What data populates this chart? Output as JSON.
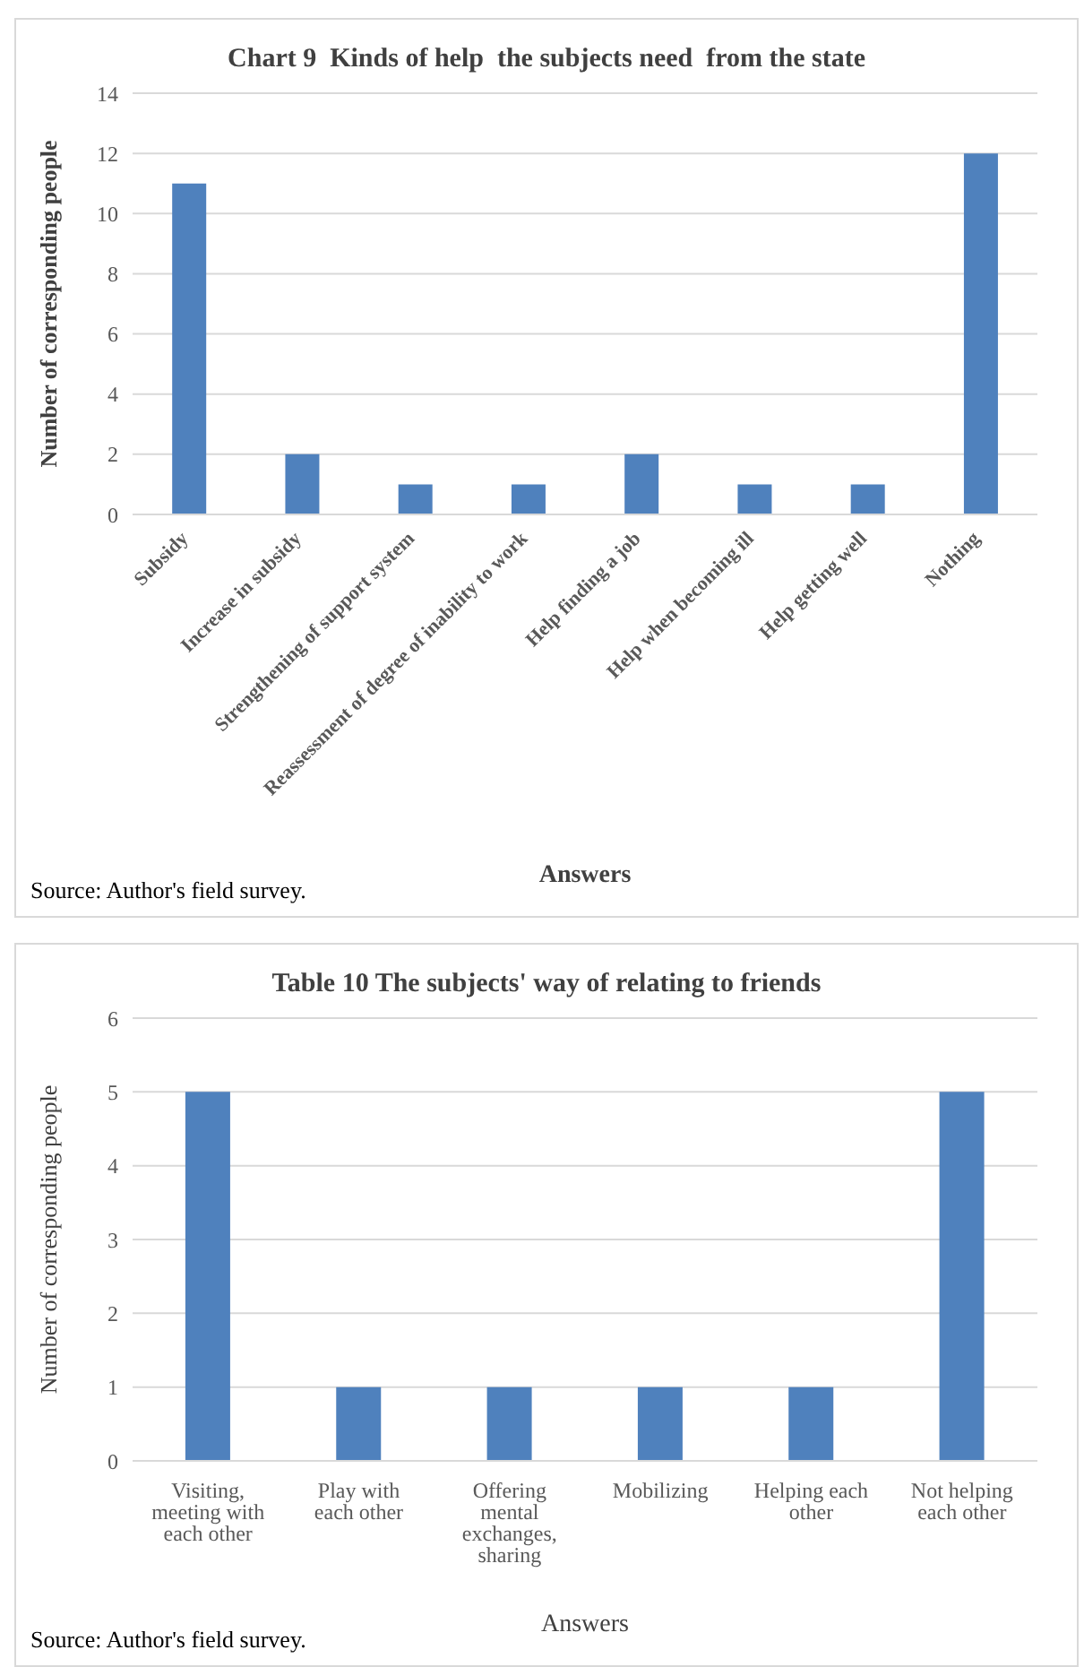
{
  "chart_data": [
    {
      "type": "bar",
      "title": "Chart 9  Kinds of help  the subjects need  from the state",
      "xlabel": "Answers",
      "ylabel": "Number of  corresponding people",
      "annotations": [
        "Source: Author's field survey."
      ],
      "categories": [
        "Subsidy",
        "Increase in subsidy",
        "Strengthening of support system",
        "Reassessment of degree of inability to work",
        "Help finding a job",
        "Help when becoming ill",
        "Help getting well",
        "Nothing"
      ],
      "values": [
        11,
        2,
        1,
        1,
        2,
        1,
        1,
        12
      ],
      "color": "#4f81bd",
      "ylim": [
        0,
        14
      ],
      "yticks": [
        0,
        2,
        4,
        6,
        8,
        10,
        12,
        14
      ],
      "grid": "y"
    },
    {
      "type": "bar",
      "title": "Table 10 The subjects' way of relating to friends",
      "xlabel": "Answers",
      "ylabel": "Number of corresponding people",
      "annotations": [
        "Source: Author's field survey."
      ],
      "categories": [
        "Visiting, meeting with each other",
        "Play with each other",
        "Offering mental exchanges, sharing",
        "Mobilizing",
        "Helping each other",
        "Not helping each other"
      ],
      "values": [
        5,
        1,
        1,
        1,
        1,
        5
      ],
      "color": "#4f81bd",
      "ylim": [
        0,
        6
      ],
      "yticks": [
        0,
        1,
        2,
        3,
        4,
        5,
        6
      ],
      "grid": "y"
    }
  ]
}
